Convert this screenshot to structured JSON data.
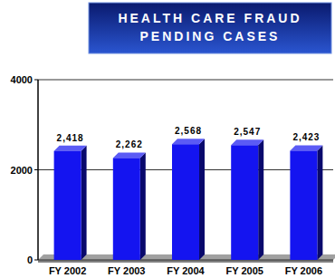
{
  "chart_data": {
    "type": "bar",
    "title": "HEALTH CARE FRAUD\nPENDING CASES",
    "categories": [
      "FY 2002",
      "FY 2003",
      "FY 2004",
      "FY 2005",
      "FY 2006"
    ],
    "values": [
      2418,
      2262,
      2568,
      2547,
      2423
    ],
    "value_labels": [
      "2,418",
      "2,262",
      "2,568",
      "2,547",
      "2,423"
    ],
    "color": "#1414f0",
    "ylim": [
      0,
      4000
    ],
    "yticks": [
      0,
      2000,
      4000
    ],
    "grid": true,
    "data_labels": true
  }
}
